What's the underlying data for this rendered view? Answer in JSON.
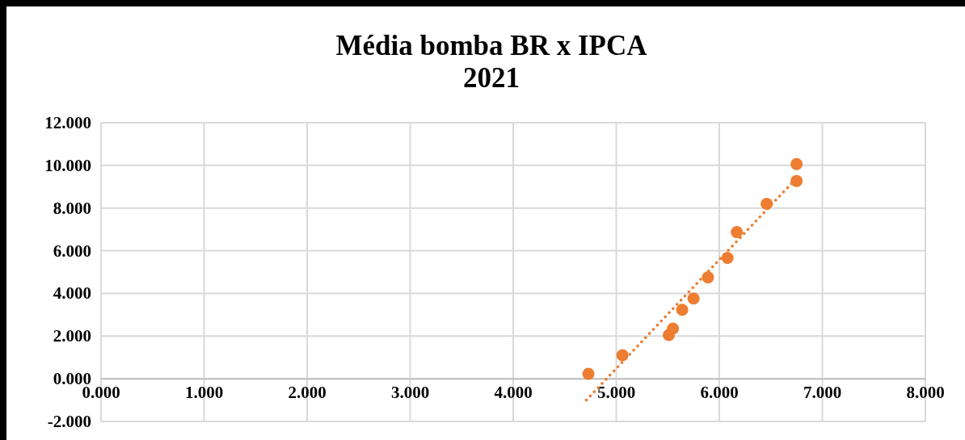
{
  "chart_data": {
    "type": "scatter",
    "title": "Média bomba BR x IPCA\n2021",
    "xlim": [
      0,
      8
    ],
    "xticks": [
      {
        "value": 0,
        "label": "0.000"
      },
      {
        "value": 1,
        "label": "1.000"
      },
      {
        "value": 2,
        "label": "2.000"
      },
      {
        "value": 3,
        "label": "3.000"
      },
      {
        "value": 4,
        "label": "4.000"
      },
      {
        "value": 5,
        "label": "5.000"
      },
      {
        "value": 6,
        "label": "6.000"
      },
      {
        "value": 7,
        "label": "7.000"
      },
      {
        "value": 8,
        "label": "8.000"
      }
    ],
    "ylim": [
      -2,
      12
    ],
    "yticks": [
      {
        "value": -2,
        "label": "-2.000"
      },
      {
        "value": 0,
        "label": "0.000"
      },
      {
        "value": 2,
        "label": "2.000"
      },
      {
        "value": 4,
        "label": "4.000"
      },
      {
        "value": 6,
        "label": "6.000"
      },
      {
        "value": 8,
        "label": "8.000"
      },
      {
        "value": 10,
        "label": "10.000"
      },
      {
        "value": 12,
        "label": "12.000"
      }
    ],
    "grid": true,
    "marker": "circle",
    "series": [
      {
        "color": "#ed7d31",
        "x": [
          4.73,
          5.06,
          5.51,
          5.55,
          5.64,
          5.75,
          5.89,
          6.08,
          6.17,
          6.46,
          6.75,
          6.75
        ],
        "values": [
          0.23,
          1.1,
          2.05,
          2.35,
          3.23,
          3.76,
          4.75,
          5.66,
          6.87,
          8.2,
          9.27,
          10.06
        ]
      },
      {
        "type": "line",
        "color": "#ed7d31",
        "line_style": "dotted",
        "marker": "none",
        "x": [
          4.71,
          6.73
        ],
        "values": [
          -1.0,
          9.3
        ]
      }
    ]
  }
}
